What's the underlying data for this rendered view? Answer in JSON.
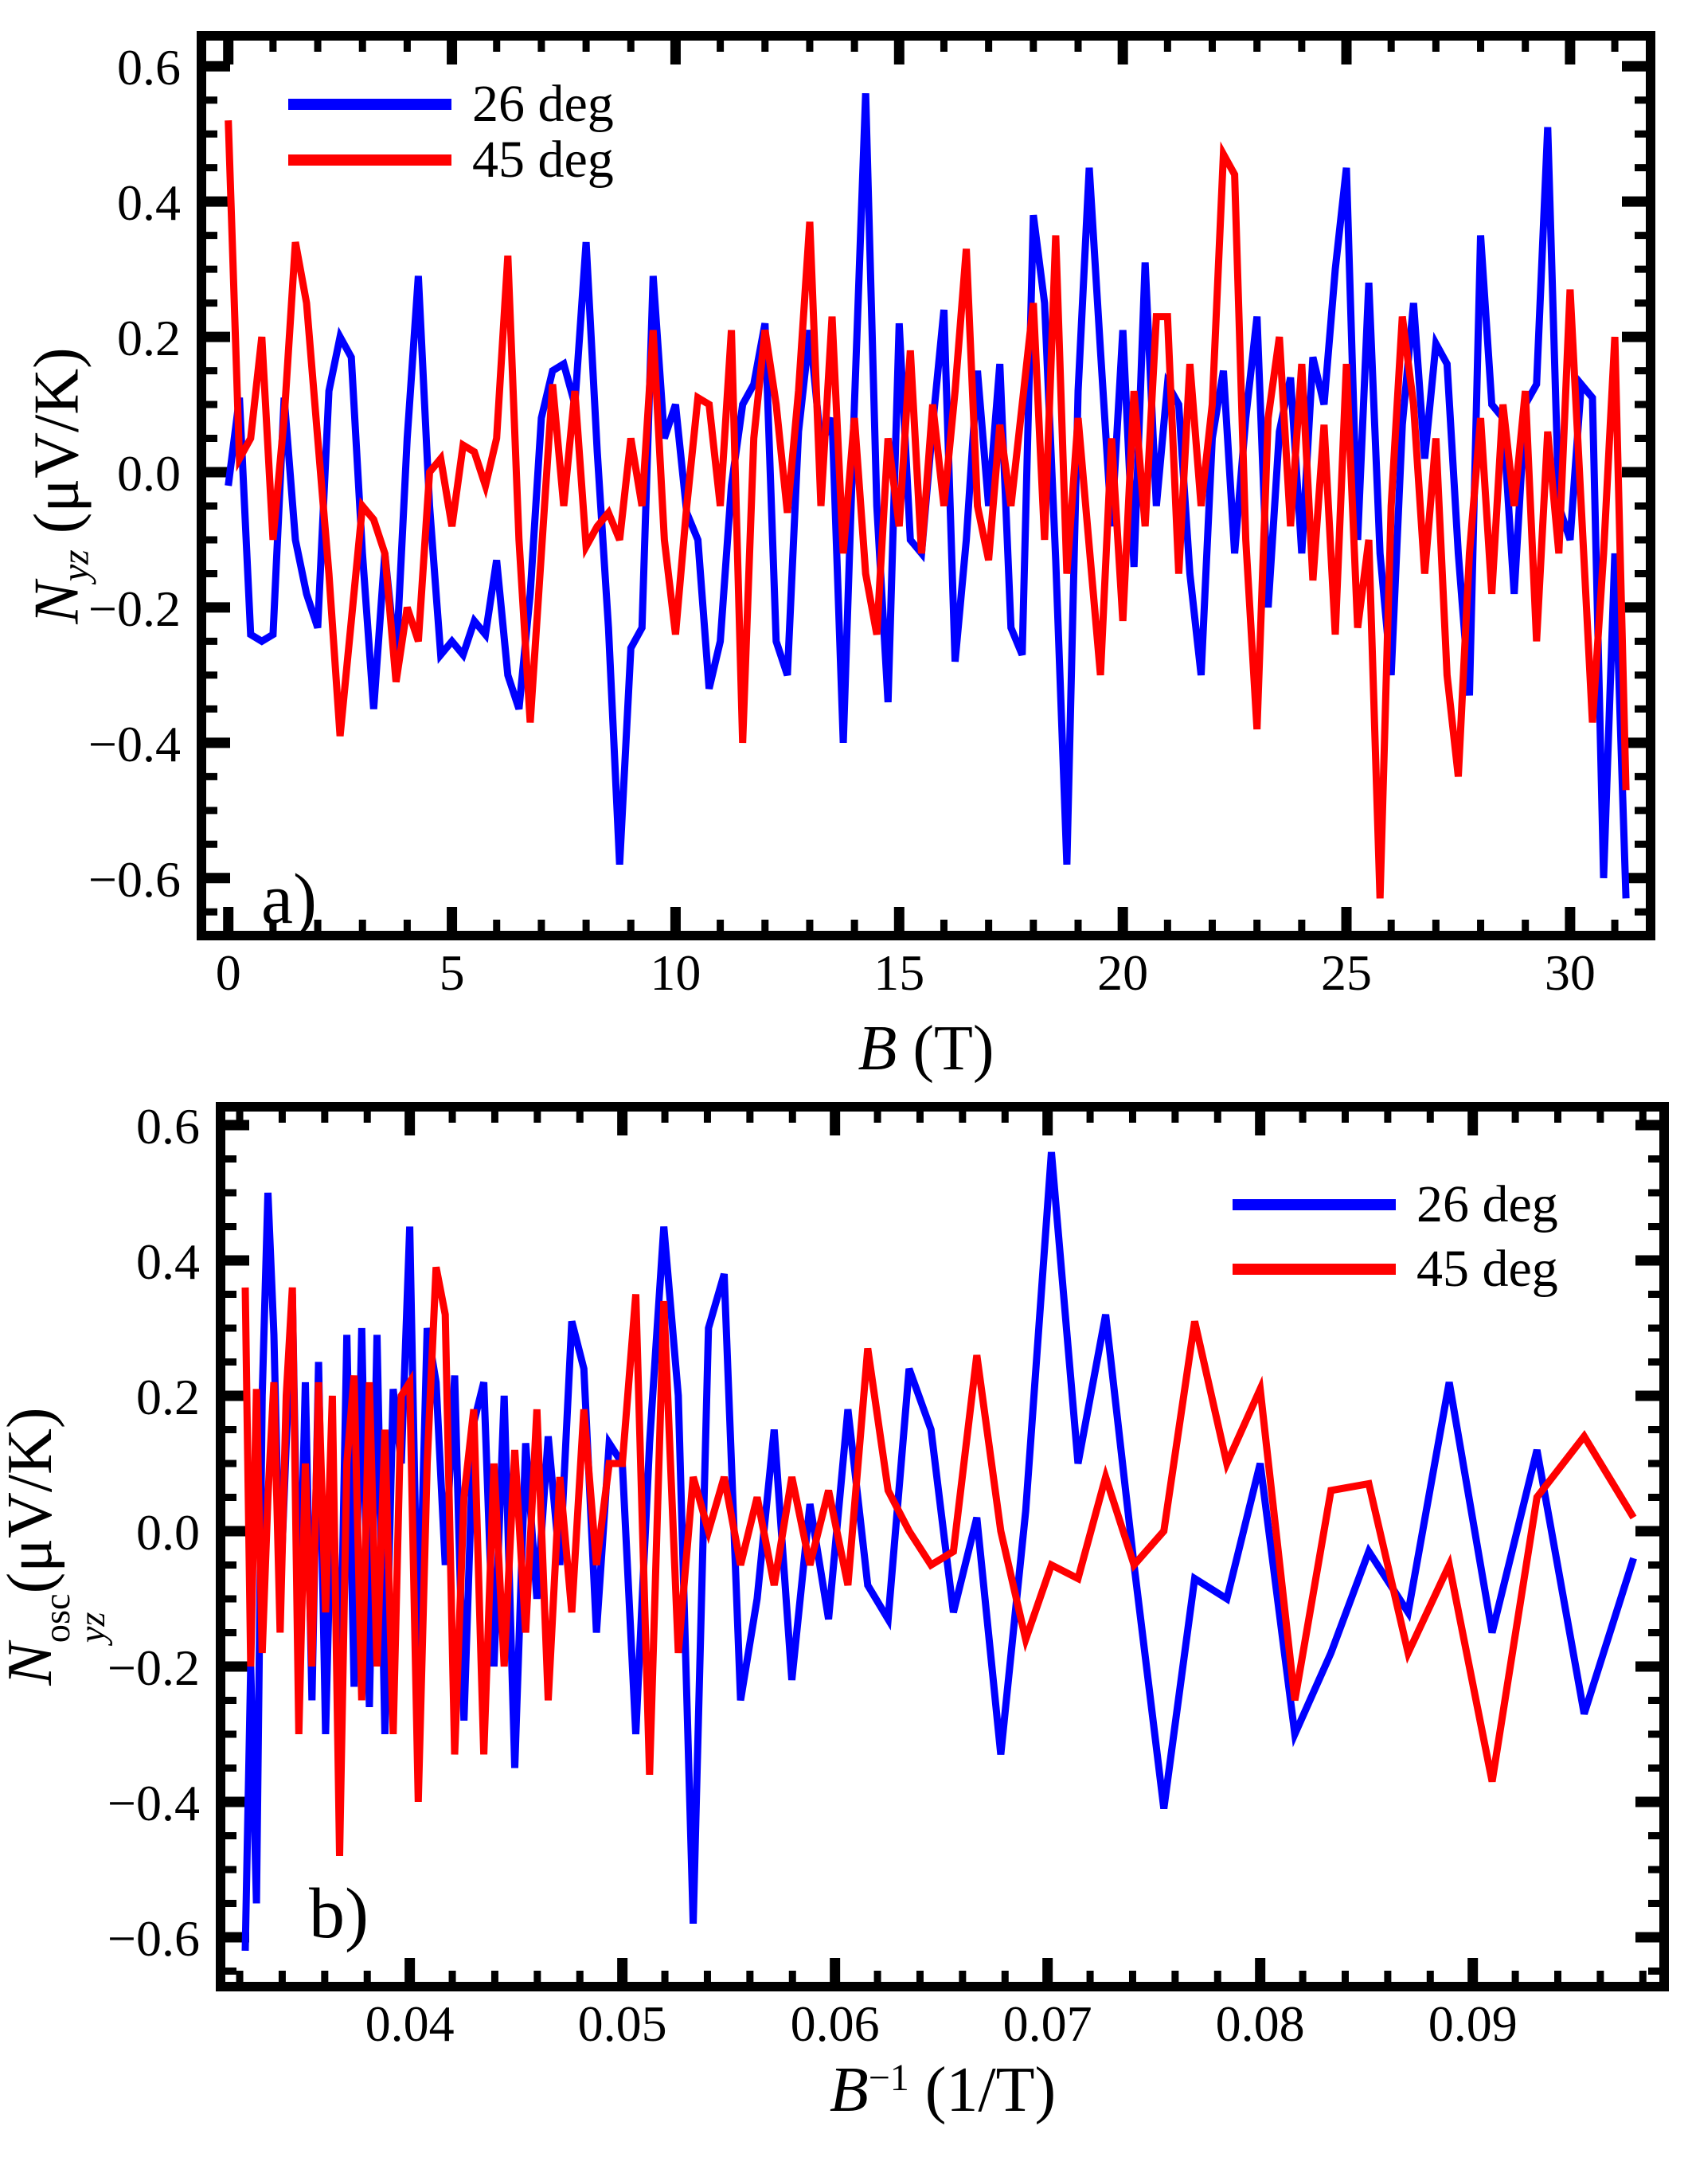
{
  "figure": {
    "background": "#ffffff",
    "frame_color": "#000000",
    "series_colors": {
      "deg26": "#0000ff",
      "deg45": "#ff0000"
    }
  },
  "chart_data": [
    {
      "id": "a",
      "type": "line",
      "panel_label": "a)",
      "title": "",
      "xlabel": {
        "var": "B",
        "sup": "",
        "units": " (T)",
        "text": "B (T)"
      },
      "ylabel": {
        "var": "N",
        "sub": "yz",
        "sup": "",
        "units": " (μV/K)",
        "text": "Nyz (μV/K)"
      },
      "xlim": [
        -0.6,
        31.8
      ],
      "ylim": [
        -0.685,
        0.645
      ],
      "grid": false,
      "x_major_ticks": [
        0,
        5,
        10,
        15,
        20,
        25,
        30
      ],
      "x_major_labels": [
        "0",
        "5",
        "10",
        "15",
        "20",
        "25",
        "30"
      ],
      "x_minor_step": 1,
      "y_major_ticks": [
        -0.6,
        -0.4,
        -0.2,
        0,
        0.2,
        0.4,
        0.6
      ],
      "y_major_labels": [
        "−0.6",
        "−0.4",
        "−0.2",
        "0.0",
        "0.2",
        "0.4",
        "0.6"
      ],
      "y_minor_step": 0.05,
      "legend_position": "top-left",
      "legend": [
        {
          "label": "26 deg",
          "color": "#0000ff"
        },
        {
          "label": "45 deg",
          "color": "#ff0000"
        }
      ],
      "x_start": 0,
      "x_step": 0.25,
      "series": [
        {
          "name": "26 deg",
          "color": "#0000ff",
          "y": [
            -0.02,
            0.11,
            -0.24,
            -0.25,
            -0.24,
            0.11,
            -0.1,
            -0.18,
            -0.23,
            0.12,
            0.2,
            0.17,
            -0.12,
            -0.35,
            -0.12,
            -0.28,
            0.05,
            0.29,
            -0.05,
            -0.27,
            -0.25,
            -0.27,
            -0.22,
            -0.24,
            -0.13,
            -0.3,
            -0.35,
            -0.18,
            0.08,
            0.15,
            0.16,
            0.1,
            0.34,
            0.03,
            -0.23,
            -0.58,
            -0.26,
            -0.23,
            0.29,
            0.05,
            0.1,
            -0.06,
            -0.1,
            -0.32,
            -0.25,
            -0.02,
            0.1,
            0.13,
            0.22,
            -0.25,
            -0.3,
            0.06,
            0.21,
            0.04,
            0.08,
            -0.4,
            0.1,
            0.56,
            -0.05,
            -0.34,
            0.22,
            -0.1,
            -0.12,
            0.07,
            0.24,
            -0.28,
            -0.1,
            0.15,
            -0.05,
            0.16,
            -0.23,
            -0.27,
            0.38,
            0.25,
            -0.13,
            -0.58,
            0.12,
            0.45,
            0.18,
            -0.08,
            0.21,
            -0.14,
            0.31,
            -0.05,
            0.13,
            0.1,
            -0.15,
            -0.3,
            0.05,
            0.15,
            -0.12,
            0.08,
            0.23,
            -0.2,
            0.06,
            0.14,
            -0.12,
            0.17,
            0.1,
            0.3,
            0.45,
            -0.1,
            0.28,
            -0.12,
            -0.3,
            0.07,
            0.25,
            0.02,
            0.19,
            0.16,
            -0.12,
            -0.33,
            0.35,
            0.1,
            0.08,
            -0.18,
            0.1,
            0.13,
            0.51,
            -0.05,
            -0.1,
            0.13,
            0.11,
            -0.6,
            -0.12,
            -0.63
          ]
        },
        {
          "name": "45 deg",
          "color": "#ff0000",
          "y": [
            0.52,
            0.02,
            0.05,
            0.2,
            -0.1,
            0.08,
            0.34,
            0.25,
            0.05,
            -0.15,
            -0.39,
            -0.22,
            -0.05,
            -0.07,
            -0.12,
            -0.31,
            -0.2,
            -0.25,
            0.0,
            0.02,
            -0.08,
            0.04,
            0.03,
            -0.02,
            0.05,
            0.32,
            -0.1,
            -0.37,
            -0.12,
            0.13,
            -0.05,
            0.12,
            -0.11,
            -0.08,
            -0.06,
            -0.1,
            0.05,
            -0.05,
            0.21,
            -0.1,
            -0.24,
            -0.05,
            0.11,
            0.1,
            -0.05,
            0.21,
            -0.4,
            0.05,
            0.21,
            0.1,
            -0.06,
            0.12,
            0.37,
            -0.05,
            0.23,
            -0.12,
            0.08,
            -0.15,
            -0.24,
            0.05,
            -0.08,
            0.18,
            -0.12,
            0.1,
            -0.05,
            0.12,
            0.33,
            -0.05,
            -0.13,
            0.07,
            -0.05,
            0.1,
            0.25,
            -0.1,
            0.35,
            -0.15,
            0.08,
            -0.11,
            -0.3,
            0.05,
            -0.22,
            0.12,
            -0.08,
            0.23,
            0.23,
            -0.15,
            0.16,
            -0.05,
            0.1,
            0.47,
            0.44,
            -0.1,
            -0.38,
            0.08,
            0.2,
            -0.08,
            0.16,
            -0.16,
            0.07,
            -0.24,
            0.16,
            -0.23,
            -0.1,
            -0.63,
            -0.05,
            0.23,
            0.1,
            -0.15,
            0.05,
            -0.3,
            -0.45,
            -0.12,
            0.08,
            -0.18,
            0.1,
            -0.05,
            0.12,
            -0.25,
            0.06,
            -0.12,
            0.27,
            -0.05,
            -0.37,
            -0.12,
            0.2,
            -0.47
          ]
        }
      ]
    },
    {
      "id": "b",
      "type": "line",
      "panel_label": "b)",
      "title": "",
      "xlabel": {
        "var": "B",
        "sup": "−1",
        "units": " (1/T)",
        "text": "B−1 (1/T)"
      },
      "ylabel": {
        "var": "N",
        "sub": "yz",
        "sup": "osc",
        "units": "(μV/K)",
        "text": "Nyzosc(μV/K)"
      },
      "xlim": [
        0.0311,
        0.099
      ],
      "ylim": [
        -0.673,
        0.627
      ],
      "grid": false,
      "x_major_ticks": [
        0.04,
        0.05,
        0.06,
        0.07,
        0.08,
        0.09
      ],
      "x_major_labels": [
        "0.04",
        "0.05",
        "0.06",
        "0.07",
        "0.08",
        "0.09"
      ],
      "x_minor_step": 0.002,
      "y_major_ticks": [
        -0.6,
        -0.4,
        -0.2,
        0,
        0.2,
        0.4,
        0.6
      ],
      "y_major_labels": [
        "−0.6",
        "−0.4",
        "−0.2",
        "0.0",
        "0.2",
        "0.4",
        "0.6"
      ],
      "y_minor_step": 0.05,
      "legend_position": "top-right",
      "legend": [
        {
          "label": "26 deg",
          "color": "#0000ff"
        },
        {
          "label": "45 deg",
          "color": "#ff0000"
        }
      ],
      "x": [
        0.03226,
        0.03252,
        0.03279,
        0.03306,
        0.03333,
        0.03361,
        0.0339,
        0.03419,
        0.03448,
        0.03478,
        0.03509,
        0.0354,
        0.03571,
        0.03604,
        0.03636,
        0.0367,
        0.03704,
        0.03738,
        0.03774,
        0.0381,
        0.03846,
        0.03883,
        0.03922,
        0.0396,
        0.04,
        0.0404,
        0.04082,
        0.04124,
        0.04167,
        0.04211,
        0.04255,
        0.04301,
        0.04348,
        0.04396,
        0.04444,
        0.04494,
        0.04545,
        0.04598,
        0.04651,
        0.04706,
        0.04762,
        0.04819,
        0.04878,
        0.04938,
        0.05,
        0.05063,
        0.05128,
        0.05195,
        0.05263,
        0.05333,
        0.05405,
        0.05479,
        0.05556,
        0.05634,
        0.05714,
        0.05797,
        0.05882,
        0.0597,
        0.06061,
        0.06154,
        0.0625,
        0.06349,
        0.06452,
        0.06557,
        0.06667,
        0.0678,
        0.06897,
        0.07018,
        0.07143,
        0.07273,
        0.07407,
        0.07547,
        0.07692,
        0.07843,
        0.08,
        0.08163,
        0.08333,
        0.08511,
        0.08696,
        0.08889,
        0.09091,
        0.09302,
        0.09524,
        0.09756
      ],
      "series": [
        {
          "name": "26 deg",
          "color": "#0000ff",
          "y": [
            -0.62,
            -0.2,
            -0.55,
            0.2,
            0.5,
            0.29,
            -0.1,
            0.13,
            0.35,
            -0.18,
            0.22,
            -0.25,
            0.25,
            -0.3,
            0.1,
            -0.28,
            0.29,
            -0.23,
            0.3,
            -0.26,
            0.29,
            -0.3,
            0.21,
            0.1,
            0.45,
            -0.2,
            0.3,
            0.22,
            -0.05,
            0.23,
            -0.28,
            0.16,
            0.22,
            -0.2,
            0.2,
            -0.35,
            0.13,
            -0.1,
            0.14,
            -0.05,
            0.31,
            0.24,
            -0.15,
            0.13,
            0.1,
            -0.3,
            0.13,
            0.45,
            0.2,
            -0.58,
            0.3,
            0.38,
            -0.25,
            -0.1,
            0.15,
            -0.22,
            0.04,
            -0.13,
            0.18,
            -0.08,
            -0.13,
            0.24,
            0.15,
            -0.12,
            0.02,
            -0.33,
            0.03,
            0.56,
            0.1,
            0.32,
            -0.05,
            -0.41,
            -0.07,
            -0.1,
            0.1,
            -0.3,
            -0.18,
            -0.03,
            -0.12,
            0.22,
            -0.15,
            0.12,
            -0.27,
            -0.04
          ]
        },
        {
          "name": "45 deg",
          "color": "#ff0000",
          "y": [
            0.36,
            -0.2,
            0.21,
            -0.18,
            0.05,
            0.22,
            -0.15,
            0.2,
            0.36,
            -0.3,
            0.1,
            -0.2,
            0.22,
            -0.12,
            0.2,
            -0.48,
            0.1,
            0.23,
            -0.25,
            0.22,
            -0.2,
            0.15,
            -0.3,
            0.2,
            0.22,
            -0.4,
            0.1,
            0.39,
            0.32,
            -0.33,
            0.05,
            0.18,
            -0.33,
            0.1,
            -0.2,
            0.12,
            -0.15,
            0.18,
            -0.25,
            0.08,
            -0.12,
            0.18,
            -0.05,
            0.1,
            0.1,
            0.35,
            -0.36,
            0.34,
            -0.18,
            0.08,
            0.0,
            0.08,
            -0.05,
            0.05,
            -0.08,
            0.08,
            -0.05,
            0.06,
            -0.08,
            0.27,
            0.06,
            0.0,
            -0.05,
            -0.03,
            0.26,
            0.0,
            -0.16,
            -0.05,
            -0.07,
            0.08,
            -0.05,
            0.0,
            0.31,
            0.1,
            0.21,
            -0.25,
            0.06,
            0.07,
            -0.18,
            -0.05,
            -0.37,
            0.05,
            0.14,
            0.02
          ]
        }
      ]
    }
  ]
}
